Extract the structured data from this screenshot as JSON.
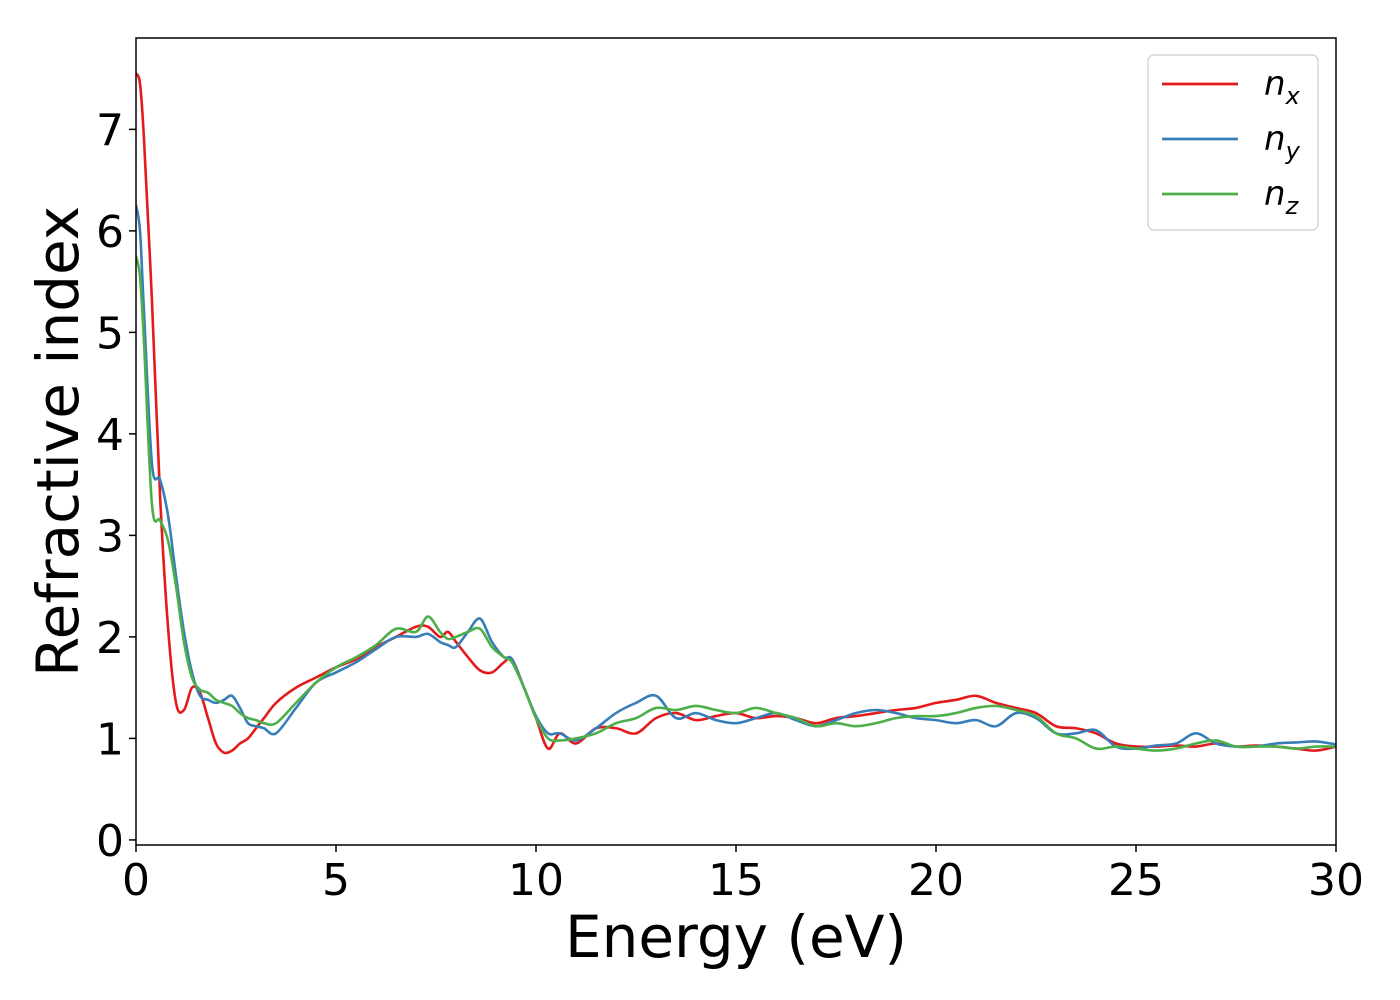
{
  "chart_data": {
    "type": "line",
    "xlabel": "Energy (eV)",
    "ylabel": "Refractive index",
    "xlim": [
      0,
      30
    ],
    "ylim": [
      -0.05,
      7.9
    ],
    "xticks": [
      0,
      5,
      10,
      15,
      20,
      25,
      30
    ],
    "yticks": [
      0,
      1,
      2,
      3,
      4,
      5,
      6,
      7
    ],
    "grid": false,
    "legend_position": "top-right",
    "series": [
      {
        "name": "n_x",
        "label_base": "n",
        "label_sub": "x",
        "color": "#e41a1c",
        "x": [
          0,
          0.1,
          0.2,
          0.4,
          0.6,
          0.8,
          1.0,
          1.2,
          1.4,
          1.6,
          1.8,
          2.0,
          2.2,
          2.4,
          2.6,
          2.8,
          3.0,
          3.2,
          3.5,
          4.0,
          4.5,
          5.0,
          5.5,
          6.0,
          6.5,
          7.0,
          7.3,
          7.6,
          7.8,
          8.0,
          8.3,
          8.6,
          8.9,
          9.2,
          9.4,
          9.7,
          10.0,
          10.3,
          10.6,
          11.0,
          11.5,
          12.0,
          12.5,
          13.0,
          13.5,
          14.0,
          14.5,
          15.0,
          15.5,
          16.0,
          16.5,
          17.0,
          17.5,
          18.0,
          18.5,
          19.0,
          19.5,
          20.0,
          20.5,
          21.0,
          21.5,
          22.0,
          22.5,
          23.0,
          23.5,
          24.0,
          24.5,
          25.0,
          25.5,
          26.0,
          26.5,
          27.0,
          27.5,
          28.0,
          28.5,
          29.0,
          29.5,
          30.0
        ],
        "values": [
          7.55,
          7.45,
          6.9,
          5.3,
          3.4,
          2.1,
          1.35,
          1.28,
          1.5,
          1.45,
          1.2,
          0.95,
          0.86,
          0.88,
          0.95,
          1.0,
          1.1,
          1.2,
          1.35,
          1.5,
          1.6,
          1.7,
          1.78,
          1.9,
          2.0,
          2.1,
          2.1,
          2.0,
          2.05,
          1.95,
          1.8,
          1.67,
          1.65,
          1.75,
          1.78,
          1.5,
          1.2,
          0.9,
          1.05,
          0.95,
          1.1,
          1.1,
          1.05,
          1.2,
          1.25,
          1.18,
          1.22,
          1.25,
          1.2,
          1.22,
          1.2,
          1.15,
          1.2,
          1.22,
          1.25,
          1.28,
          1.3,
          1.35,
          1.38,
          1.42,
          1.35,
          1.3,
          1.25,
          1.12,
          1.1,
          1.05,
          0.95,
          0.92,
          0.92,
          0.93,
          0.92,
          0.95,
          0.92,
          0.93,
          0.92,
          0.9,
          0.88,
          0.92
        ]
      },
      {
        "name": "n_y",
        "label_base": "n",
        "label_sub": "y",
        "color": "#377eb8",
        "x": [
          0,
          0.1,
          0.2,
          0.4,
          0.6,
          0.8,
          1.0,
          1.2,
          1.4,
          1.6,
          1.8,
          2.0,
          2.2,
          2.4,
          2.6,
          2.8,
          3.0,
          3.2,
          3.5,
          4.0,
          4.5,
          5.0,
          5.5,
          6.0,
          6.5,
          7.0,
          7.3,
          7.6,
          7.8,
          8.0,
          8.3,
          8.6,
          8.9,
          9.2,
          9.4,
          9.7,
          10.0,
          10.3,
          10.6,
          11.0,
          11.5,
          12.0,
          12.5,
          13.0,
          13.5,
          14.0,
          14.5,
          15.0,
          15.5,
          16.0,
          16.5,
          17.0,
          17.5,
          18.0,
          18.5,
          19.0,
          19.5,
          20.0,
          20.5,
          21.0,
          21.5,
          22.0,
          22.5,
          23.0,
          23.5,
          24.0,
          24.5,
          25.0,
          25.5,
          26.0,
          26.5,
          27.0,
          27.5,
          28.0,
          28.5,
          29.0,
          29.5,
          30.0
        ],
        "values": [
          6.25,
          6.0,
          5.2,
          3.7,
          3.55,
          3.2,
          2.6,
          2.05,
          1.65,
          1.42,
          1.38,
          1.35,
          1.38,
          1.42,
          1.3,
          1.15,
          1.12,
          1.1,
          1.05,
          1.3,
          1.55,
          1.65,
          1.75,
          1.88,
          2.0,
          2.0,
          2.03,
          1.95,
          1.92,
          1.9,
          2.05,
          2.18,
          1.95,
          1.8,
          1.78,
          1.5,
          1.22,
          1.05,
          1.05,
          0.98,
          1.1,
          1.25,
          1.35,
          1.42,
          1.2,
          1.25,
          1.18,
          1.15,
          1.2,
          1.25,
          1.18,
          1.12,
          1.18,
          1.25,
          1.28,
          1.25,
          1.2,
          1.18,
          1.15,
          1.18,
          1.12,
          1.25,
          1.2,
          1.05,
          1.05,
          1.08,
          0.92,
          0.9,
          0.93,
          0.95,
          1.05,
          0.95,
          0.92,
          0.92,
          0.95,
          0.96,
          0.97,
          0.94
        ]
      },
      {
        "name": "n_z",
        "label_base": "n",
        "label_sub": "z",
        "color": "#4daf4a",
        "x": [
          0,
          0.1,
          0.2,
          0.4,
          0.6,
          0.8,
          1.0,
          1.2,
          1.4,
          1.6,
          1.8,
          2.0,
          2.2,
          2.4,
          2.6,
          2.8,
          3.0,
          3.2,
          3.5,
          4.0,
          4.5,
          5.0,
          5.5,
          6.0,
          6.5,
          7.0,
          7.3,
          7.6,
          7.8,
          8.0,
          8.3,
          8.6,
          8.9,
          9.2,
          9.4,
          9.7,
          10.0,
          10.3,
          10.6,
          11.0,
          11.5,
          12.0,
          12.5,
          13.0,
          13.5,
          14.0,
          14.5,
          15.0,
          15.5,
          16.0,
          16.5,
          17.0,
          17.5,
          18.0,
          18.5,
          19.0,
          19.5,
          20.0,
          20.5,
          21.0,
          21.5,
          22.0,
          22.5,
          23.0,
          23.5,
          24.0,
          24.5,
          25.0,
          25.5,
          26.0,
          26.5,
          27.0,
          27.5,
          28.0,
          28.5,
          29.0,
          29.5,
          30.0
        ],
        "values": [
          5.75,
          5.55,
          4.9,
          3.3,
          3.15,
          2.95,
          2.5,
          1.95,
          1.6,
          1.48,
          1.45,
          1.38,
          1.35,
          1.32,
          1.25,
          1.2,
          1.18,
          1.15,
          1.15,
          1.35,
          1.55,
          1.7,
          1.8,
          1.92,
          2.08,
          2.05,
          2.2,
          2.05,
          1.98,
          2.0,
          2.05,
          2.08,
          1.9,
          1.8,
          1.75,
          1.5,
          1.2,
          1.0,
          0.98,
          1.0,
          1.05,
          1.15,
          1.2,
          1.3,
          1.28,
          1.32,
          1.28,
          1.25,
          1.3,
          1.25,
          1.2,
          1.12,
          1.15,
          1.12,
          1.15,
          1.2,
          1.22,
          1.22,
          1.25,
          1.3,
          1.32,
          1.28,
          1.22,
          1.05,
          1.0,
          0.9,
          0.92,
          0.9,
          0.88,
          0.9,
          0.95,
          0.98,
          0.92,
          0.92,
          0.92,
          0.9,
          0.92,
          0.92
        ]
      }
    ]
  }
}
